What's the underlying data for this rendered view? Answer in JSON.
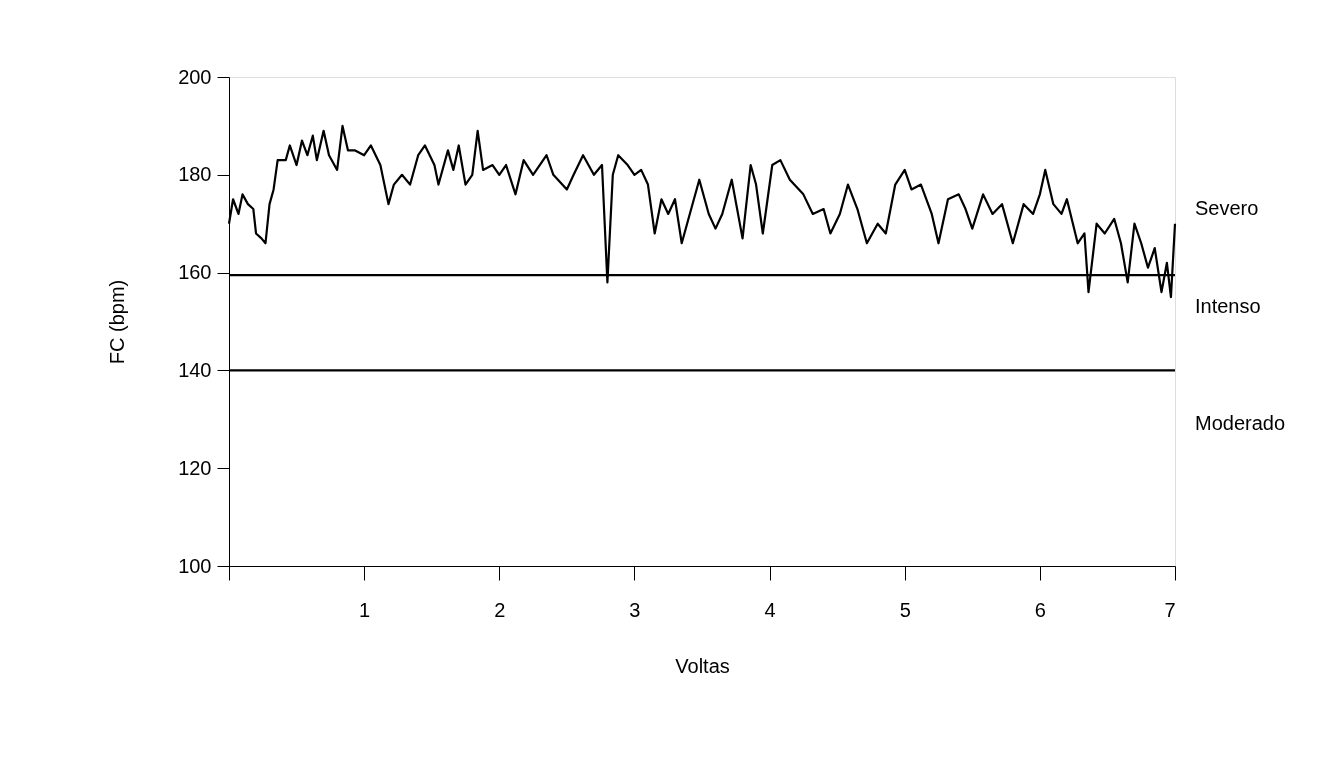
{
  "chart_data": {
    "type": "line",
    "xlabel": "Voltas",
    "ylabel": "FC (bpm)",
    "x": [
      0,
      0.03,
      0.07,
      0.1,
      0.14,
      0.18,
      0.2,
      0.24,
      0.27,
      0.3,
      0.33,
      0.36,
      0.42,
      0.45,
      0.5,
      0.54,
      0.58,
      0.62,
      0.65,
      0.7,
      0.74,
      0.8,
      0.84,
      0.88,
      0.93,
      1.0,
      1.05,
      1.12,
      1.18,
      1.22,
      1.28,
      1.34,
      1.4,
      1.45,
      1.52,
      1.55,
      1.62,
      1.66,
      1.7,
      1.75,
      1.8,
      1.84,
      1.88,
      1.95,
      2.0,
      2.05,
      2.12,
      2.18,
      2.25,
      2.35,
      2.4,
      2.5,
      2.55,
      2.62,
      2.7,
      2.76,
      2.8,
      2.84,
      2.88,
      2.95,
      3.0,
      3.05,
      3.1,
      3.15,
      3.2,
      3.25,
      3.3,
      3.35,
      3.4,
      3.48,
      3.55,
      3.6,
      3.65,
      3.72,
      3.8,
      3.86,
      3.9,
      3.95,
      4.02,
      4.08,
      4.15,
      4.25,
      4.32,
      4.4,
      4.45,
      4.52,
      4.58,
      4.65,
      4.72,
      4.8,
      4.86,
      4.93,
      5.0,
      5.05,
      5.12,
      5.2,
      5.25,
      5.32,
      5.4,
      5.45,
      5.5,
      5.58,
      5.65,
      5.72,
      5.8,
      5.88,
      5.95,
      6.0,
      6.04,
      6.1,
      6.16,
      6.2,
      6.28,
      6.33,
      6.36,
      6.42,
      6.48,
      6.55,
      6.6,
      6.65,
      6.7,
      6.75,
      6.8,
      6.85,
      6.9,
      6.94,
      6.97,
      7.0
    ],
    "series": [
      {
        "color": "#000000",
        "values": [
          170,
          175,
          172,
          176,
          174,
          173,
          168,
          167,
          166,
          174,
          177,
          183,
          183,
          186,
          182,
          187,
          184,
          188,
          183,
          189,
          184,
          181,
          190,
          185,
          185,
          184,
          186,
          182,
          174,
          178,
          180,
          178,
          184,
          186,
          182,
          178,
          185,
          181,
          186,
          178,
          180,
          189,
          181,
          182,
          180,
          182,
          176,
          183,
          180,
          184,
          180,
          177,
          180,
          184,
          180,
          182,
          158,
          180,
          184,
          182,
          180,
          181,
          178,
          168,
          175,
          172,
          175,
          166,
          171,
          179,
          172,
          169,
          172,
          179,
          167,
          182,
          178,
          168,
          182,
          183,
          179,
          176,
          172,
          173,
          168,
          172,
          178,
          173,
          166,
          170,
          168,
          178,
          181,
          177,
          178,
          172,
          166,
          175,
          176,
          173,
          169,
          176,
          172,
          174,
          166,
          174,
          172,
          176,
          181,
          174,
          172,
          175,
          166,
          168,
          156,
          170,
          168,
          171,
          166,
          158,
          170,
          166,
          161,
          165,
          156,
          162,
          155,
          170
        ]
      }
    ],
    "xlim": [
      0,
      7
    ],
    "xticks": [
      {
        "value": 0,
        "label": null
      },
      1,
      2,
      3,
      4,
      5,
      6,
      7
    ],
    "ylim": [
      100,
      200
    ],
    "yticks": [
      100,
      120,
      140,
      160,
      180,
      200
    ],
    "grid": false,
    "marker": "none",
    "line_style": "solid",
    "ref_lines": [
      {
        "axis": "y",
        "value": 159.5,
        "color": "#000000",
        "line_style": "solid"
      },
      {
        "axis": "y",
        "value": 140,
        "color": "#000000",
        "line_style": "solid"
      }
    ],
    "annotations": [
      "Severo",
      "Intenso",
      "Moderado"
    ]
  }
}
